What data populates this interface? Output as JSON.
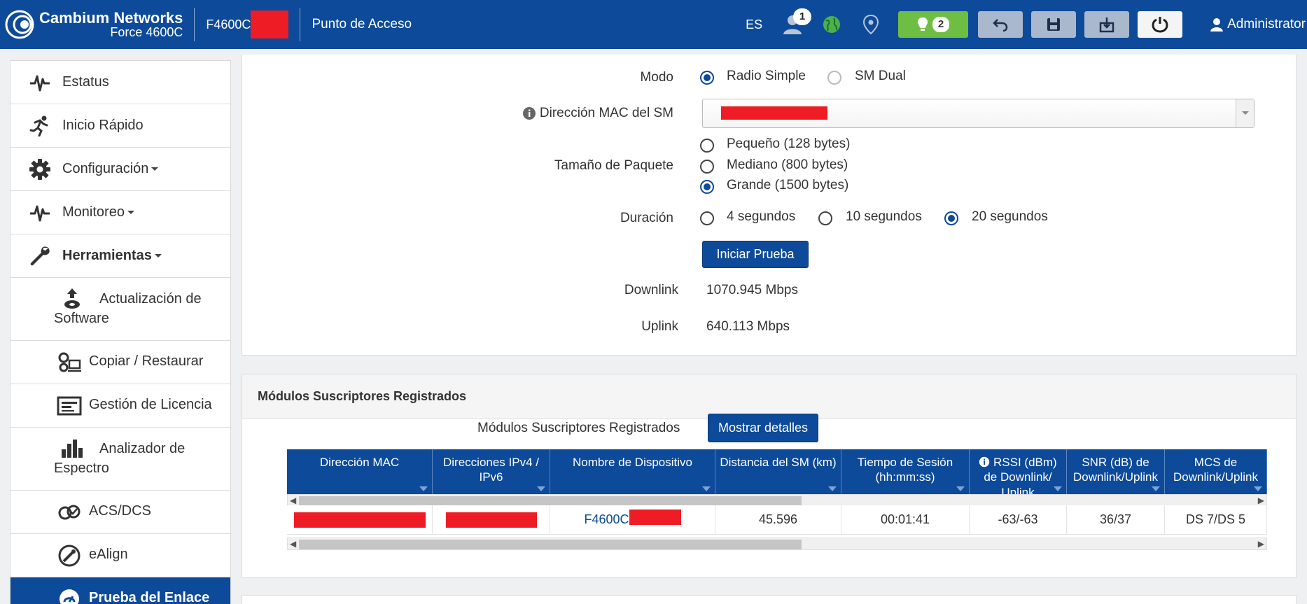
{
  "header": {
    "brand_name": "Cambium Networks",
    "brand_model": "Force 4600C",
    "device_name_prefix": "F4600C",
    "mode_label": "Punto de Acceso",
    "language": "ES",
    "user_badge_count": "1",
    "alert_count": "2",
    "admin_label": "Administrator"
  },
  "sidebar": {
    "items": [
      {
        "label": "Estatus",
        "icon": "pulse-icon"
      },
      {
        "label": "Inicio Rápido",
        "icon": "running-person-icon"
      },
      {
        "label": "Configuración",
        "icon": "gear-icon"
      },
      {
        "label": "Monitoreo",
        "icon": "pulse-icon"
      },
      {
        "label": "Herramientas",
        "icon": "wrench-icon"
      }
    ],
    "subitems": [
      {
        "label": "Actualización de Software",
        "icon": "upgrade-icon"
      },
      {
        "label": "Copiar / Restaurar",
        "icon": "backup-icon"
      },
      {
        "label": "Gestión de Licencia",
        "icon": "license-icon"
      },
      {
        "label": "Analizador de Espectro",
        "icon": "bar-chart-icon"
      },
      {
        "label": "ACS/DCS",
        "icon": "acs-icon"
      },
      {
        "label": "eAlign",
        "icon": "ealign-icon"
      },
      {
        "label": "Prueba del Enlace",
        "icon": "gauge-icon"
      }
    ]
  },
  "link_test": {
    "mode_label": "Modo",
    "mode_options": [
      "Radio Simple",
      "SM Dual"
    ],
    "mode_selected": "Radio Simple",
    "mac_label": "Dirección MAC del SM",
    "packet_label": "Tamaño de Paquete",
    "packet_options": [
      "Pequeño (128 bytes)",
      "Mediano (800 bytes)",
      "Grande (1500 bytes)"
    ],
    "packet_selected": "Grande (1500 bytes)",
    "duration_label": "Duración",
    "duration_options": [
      "4 segundos",
      "10 segundos",
      "20 segundos"
    ],
    "duration_selected": "20 segundos",
    "start_button": "Iniciar Prueba",
    "downlink_label": "Downlink",
    "downlink_value": "1070.945 Mbps",
    "uplink_label": "Uplink",
    "uplink_value": "640.113 Mbps"
  },
  "registered": {
    "panel_title": "Módulos Suscriptores Registrados",
    "inner_label": "Módulos Suscriptores Registrados",
    "details_button": "Mostrar detalles",
    "columns": [
      "Dirección MAC",
      "Direcciones IPv4 / IPv6",
      "Nombre de Dispositivo",
      "Distancia del SM (km)",
      "Tiempo de Sesión (hh:mm:ss)",
      "RSSI (dBm) de Downlink/ Uplink",
      "SNR (dB) de Downlink/Uplink",
      "MCS de Downlink/Uplink"
    ],
    "row": {
      "device_name_prefix": "F4600C",
      "distance": "45.596",
      "session_time": "00:01:41",
      "rssi": "-63/-63",
      "snr": "36/37",
      "mcs": "DS 7/DS 5"
    }
  },
  "colors": {
    "primary": "#0d4a9a",
    "alert_green": "#6fbe44",
    "redaction": "#ee1c25"
  }
}
